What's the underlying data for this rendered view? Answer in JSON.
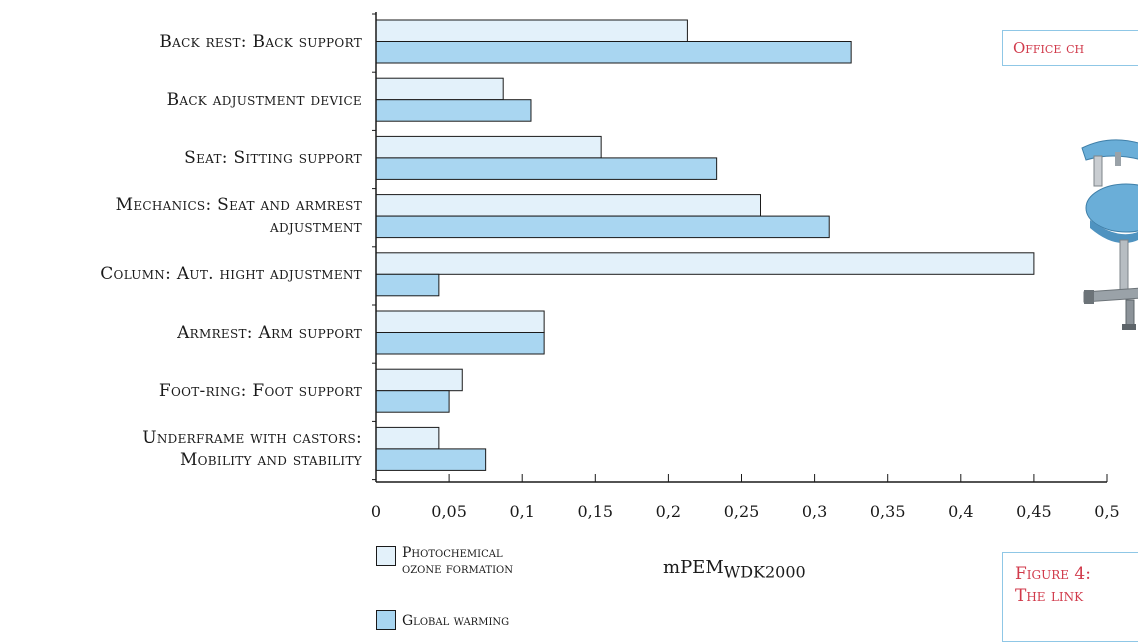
{
  "chart_data": {
    "type": "bar",
    "orientation": "horizontal",
    "categories": [
      "Back rest: Back support",
      "Back adjustment device",
      "Seat: Sitting support",
      "Mechanics: Seat and armrest adjustment",
      "Column: Aut. hight adjustment",
      "Armrest: Arm support",
      "Foot-ring: Foot support",
      "Underframe with castors: Mobility and stability"
    ],
    "category_lines": [
      [
        "Back rest: Back support"
      ],
      [
        "Back adjustment device"
      ],
      [
        "Seat: Sitting support"
      ],
      [
        "Mechanics: Seat and armrest",
        "adjustment"
      ],
      [
        "Column: Aut. hight adjustment"
      ],
      [
        "Armrest: Arm support"
      ],
      [
        "Foot-ring: Foot support"
      ],
      [
        "Underframe with castors:",
        "Mobility and stability"
      ]
    ],
    "series": [
      {
        "name": "Photochemical ozone formation",
        "name_lines": [
          "Photochemical",
          "ozone formation"
        ],
        "color": "#e3f1fa",
        "values": [
          0.213,
          0.087,
          0.154,
          0.263,
          0.45,
          0.115,
          0.059,
          0.043
        ]
      },
      {
        "name": "Global warming",
        "name_lines": [
          "Global warming"
        ],
        "color": "#a9d6f1",
        "values": [
          0.325,
          0.106,
          0.233,
          0.31,
          0.043,
          0.115,
          0.05,
          0.075
        ]
      }
    ],
    "x_ticks": [
      "0",
      "0,05",
      "0,1",
      "0,15",
      "0,2",
      "0,25",
      "0,3",
      "0,35",
      "0,4",
      "0,45",
      "0,5"
    ],
    "xlim": [
      0,
      0.5
    ],
    "unit_main": "mPEM",
    "unit_sub": "WDK2000",
    "grid": false,
    "legend_position": "bottom-left"
  },
  "side": {
    "box1_text": "Office ch",
    "box2_line1": "Figure 4:",
    "box2_line2": "The link"
  }
}
